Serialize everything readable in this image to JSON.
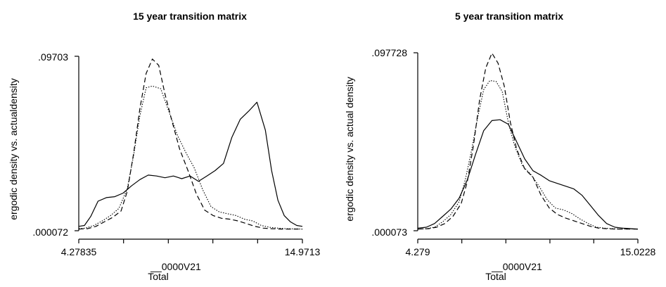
{
  "chart_data": [
    {
      "type": "line",
      "title": "15 year transition matrix",
      "xlabel": "__0000V21",
      "xlabel2": "Total",
      "ylabel": "ergodic density vs. actualdensity",
      "xlim": [
        4.27835,
        14.9713
      ],
      "ylim": [
        7.2e-05,
        0.09703
      ],
      "x_tick_labels": [
        "4.27835",
        "14.9713"
      ],
      "y_tick_labels": [
        ".000072",
        ".09703"
      ],
      "x_minor_ticks": [
        6.42,
        8.56,
        10.69,
        12.83
      ],
      "series": [
        {
          "style": "solid",
          "x": [
            4.28,
            4.55,
            4.85,
            5.2,
            5.6,
            6.0,
            6.4,
            6.8,
            7.2,
            7.6,
            8.0,
            8.4,
            8.8,
            9.2,
            9.6,
            10.0,
            10.4,
            10.8,
            11.2,
            11.6,
            12.0,
            12.4,
            12.8,
            13.2,
            13.5,
            13.8,
            14.1,
            14.4,
            14.7,
            14.97
          ],
          "y": [
            0.0025,
            0.003,
            0.008,
            0.0165,
            0.0185,
            0.019,
            0.021,
            0.025,
            0.0285,
            0.031,
            0.0305,
            0.0295,
            0.0305,
            0.029,
            0.0305,
            0.0275,
            0.0305,
            0.0335,
            0.0375,
            0.052,
            0.062,
            0.0665,
            0.0715,
            0.056,
            0.0335,
            0.017,
            0.0085,
            0.005,
            0.003,
            0.0025
          ]
        },
        {
          "style": "dotted",
          "x": [
            4.28,
            4.6,
            5.0,
            5.4,
            5.8,
            6.2,
            6.6,
            6.9,
            7.2,
            7.5,
            7.8,
            8.2,
            8.6,
            9.0,
            9.4,
            9.8,
            10.2,
            10.6,
            11.0,
            11.4,
            11.8,
            12.2,
            12.6,
            13.0,
            13.4,
            13.8,
            14.2,
            14.6,
            14.97
          ],
          "y": [
            0.0012,
            0.0015,
            0.003,
            0.0055,
            0.0085,
            0.0125,
            0.0235,
            0.042,
            0.064,
            0.0795,
            0.0805,
            0.079,
            0.066,
            0.053,
            0.0435,
            0.035,
            0.023,
            0.0135,
            0.0105,
            0.0095,
            0.0085,
            0.0065,
            0.0055,
            0.003,
            0.002,
            0.0015,
            0.0012,
            0.0011,
            0.001
          ]
        },
        {
          "style": "dashed",
          "x": [
            4.28,
            4.7,
            5.1,
            5.5,
            5.9,
            6.3,
            6.6,
            6.9,
            7.2,
            7.5,
            7.8,
            8.1,
            8.4,
            8.7,
            9.1,
            9.5,
            9.9,
            10.3,
            10.7,
            11.1,
            11.5,
            11.9,
            12.3,
            12.7,
            13.1,
            13.5,
            13.9,
            14.3,
            14.97
          ],
          "y": [
            0.001,
            0.0012,
            0.0025,
            0.005,
            0.0075,
            0.011,
            0.022,
            0.043,
            0.068,
            0.0875,
            0.0955,
            0.092,
            0.076,
            0.0625,
            0.0455,
            0.0335,
            0.0205,
            0.0115,
            0.0085,
            0.007,
            0.0065,
            0.0055,
            0.004,
            0.0025,
            0.0015,
            0.0012,
            0.001,
            0.001,
            0.001
          ]
        }
      ]
    },
    {
      "type": "line",
      "title": "5 year transition matrix",
      "xlabel": "__0000V21",
      "xlabel2": "Total",
      "ylabel": "ergodic density vs. actual density",
      "xlim": [
        4.279,
        15.0228
      ],
      "ylim": [
        7.3e-05,
        0.097728
      ],
      "x_tick_labels": [
        "4.279",
        "15.0228"
      ],
      "y_tick_labels": [
        ".000073",
        ".097728"
      ],
      "x_minor_ticks": [
        6.43,
        8.58,
        10.73,
        12.87
      ],
      "series": [
        {
          "style": "solid",
          "x": [
            4.28,
            4.7,
            5.1,
            5.5,
            5.9,
            6.3,
            6.7,
            7.1,
            7.5,
            7.9,
            8.3,
            8.7,
            9.1,
            9.5,
            9.9,
            10.3,
            10.7,
            11.1,
            11.5,
            11.9,
            12.3,
            12.7,
            13.1,
            13.5,
            13.9,
            14.3,
            14.7,
            15.02
          ],
          "y": [
            0.0015,
            0.002,
            0.004,
            0.008,
            0.012,
            0.018,
            0.028,
            0.042,
            0.055,
            0.0605,
            0.061,
            0.0585,
            0.049,
            0.0395,
            0.033,
            0.0305,
            0.0275,
            0.026,
            0.0245,
            0.023,
            0.0195,
            0.014,
            0.0085,
            0.004,
            0.002,
            0.0015,
            0.0012,
            0.001
          ]
        },
        {
          "style": "dotted",
          "x": [
            4.28,
            4.7,
            5.1,
            5.5,
            5.9,
            6.3,
            6.6,
            6.9,
            7.2,
            7.5,
            7.8,
            8.1,
            8.4,
            8.7,
            9.0,
            9.4,
            9.8,
            10.2,
            10.6,
            11.0,
            11.4,
            11.8,
            12.2,
            12.6,
            13.0,
            13.4,
            13.8,
            14.2,
            15.02
          ],
          "y": [
            0.001,
            0.0012,
            0.002,
            0.005,
            0.009,
            0.016,
            0.028,
            0.044,
            0.062,
            0.0775,
            0.0825,
            0.082,
            0.0765,
            0.0595,
            0.047,
            0.0355,
            0.031,
            0.0245,
            0.017,
            0.0125,
            0.0115,
            0.0095,
            0.0065,
            0.004,
            0.002,
            0.0015,
            0.0012,
            0.001,
            0.001
          ]
        },
        {
          "style": "dashed",
          "x": [
            4.28,
            4.8,
            5.2,
            5.6,
            6.0,
            6.4,
            6.7,
            7.0,
            7.3,
            7.6,
            7.9,
            8.2,
            8.5,
            8.8,
            9.1,
            9.5,
            9.9,
            10.3,
            10.7,
            11.1,
            11.5,
            11.9,
            12.3,
            12.7,
            13.1,
            13.5,
            13.9,
            14.4,
            15.02
          ],
          "y": [
            0.001,
            0.0012,
            0.002,
            0.004,
            0.008,
            0.015,
            0.027,
            0.047,
            0.072,
            0.0895,
            0.0975,
            0.092,
            0.0795,
            0.0595,
            0.045,
            0.034,
            0.0295,
            0.0195,
            0.0125,
            0.009,
            0.007,
            0.0055,
            0.004,
            0.0025,
            0.0015,
            0.0012,
            0.001,
            0.001,
            0.001
          ]
        }
      ]
    }
  ]
}
